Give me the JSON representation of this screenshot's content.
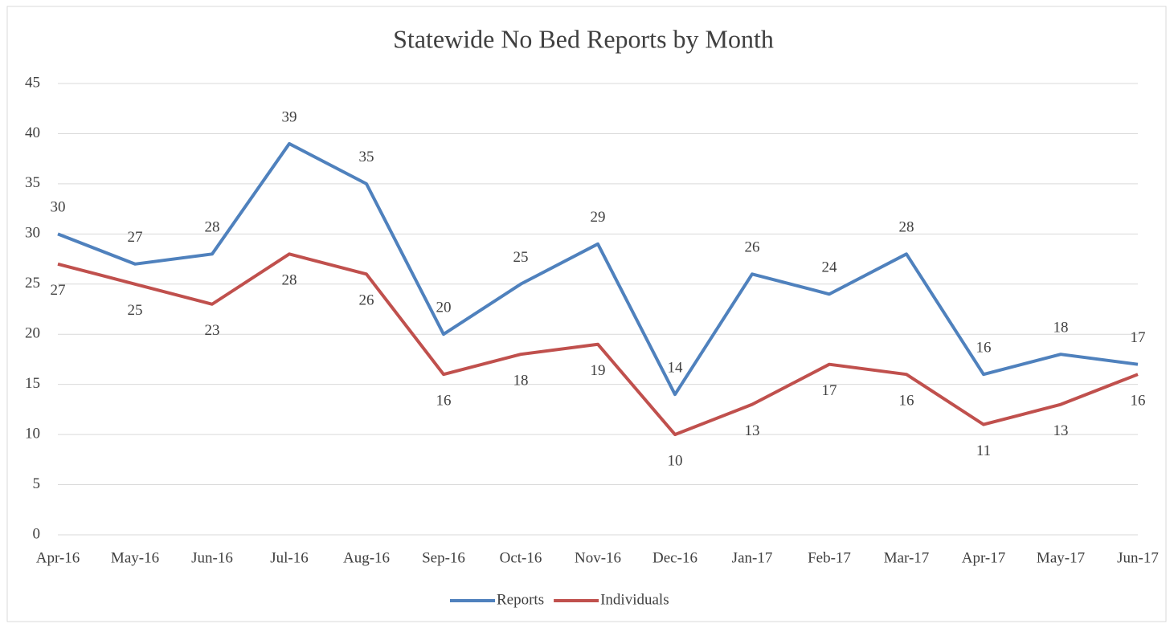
{
  "chart_data": {
    "type": "line",
    "title": "Statewide No Bed Reports by Month",
    "categories": [
      "Apr-16",
      "May-16",
      "Jun-16",
      "Jul-16",
      "Aug-16",
      "Sep-16",
      "Oct-16",
      "Nov-16",
      "Dec-16",
      "Jan-17",
      "Feb-17",
      "Mar-17",
      "Apr-17",
      "May-17",
      "Jun-17"
    ],
    "series": [
      {
        "name": "Reports",
        "color": "#4f81bd",
        "values": [
          30,
          27,
          28,
          39,
          35,
          20,
          25,
          29,
          14,
          26,
          24,
          28,
          16,
          18,
          17
        ]
      },
      {
        "name": "Individuals",
        "color": "#c0504d",
        "values": [
          27,
          25,
          23,
          28,
          26,
          16,
          18,
          19,
          10,
          13,
          17,
          16,
          11,
          13,
          16
        ]
      }
    ],
    "ylim": [
      0,
      45
    ],
    "yticks": [
      0,
      5,
      10,
      15,
      20,
      25,
      30,
      35,
      40,
      45
    ],
    "grid": true,
    "legend": "bottom"
  }
}
